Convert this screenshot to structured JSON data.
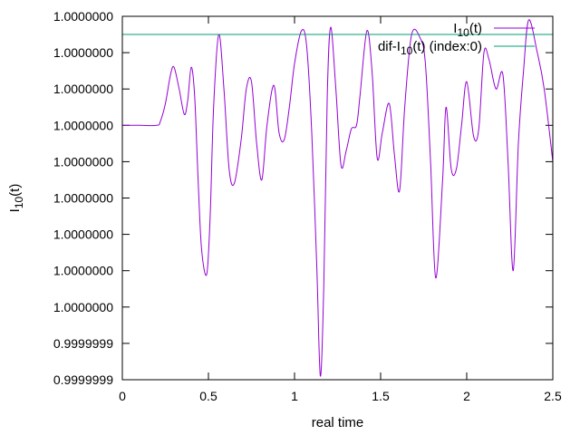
{
  "chart_data": {
    "type": "line",
    "xlabel": "real time",
    "ylabel": "I",
    "ylabel_sub": "10",
    "ylabel_suffix": "(t)",
    "xlim": [
      0,
      2.5
    ],
    "ylim": [
      0,
      10
    ],
    "x_ticks": [
      {
        "value": 0,
        "label": "0"
      },
      {
        "value": 0.5,
        "label": "0.5"
      },
      {
        "value": 1,
        "label": "1"
      },
      {
        "value": 1.5,
        "label": "1.5"
      },
      {
        "value": 2,
        "label": "2"
      },
      {
        "value": 2.5,
        "label": "2.5"
      }
    ],
    "y_ticks": [
      {
        "value": 0,
        "label": "0.9999999"
      },
      {
        "value": 1,
        "label": "0.9999999"
      },
      {
        "value": 2,
        "label": "1.0000000"
      },
      {
        "value": 3,
        "label": "1.0000000"
      },
      {
        "value": 4,
        "label": "1.0000000"
      },
      {
        "value": 5,
        "label": "1.0000000"
      },
      {
        "value": 6,
        "label": "1.0000000"
      },
      {
        "value": 7,
        "label": "1.0000000"
      },
      {
        "value": 8,
        "label": "1.0000000"
      },
      {
        "value": 9,
        "label": "1.0000000"
      },
      {
        "value": 10,
        "label": "1.0000000"
      }
    ],
    "legend_position": "top-right",
    "series": [
      {
        "legend_main": "I",
        "legend_sub": "10",
        "legend_suffix": "(t)",
        "color": "#9400d3",
        "x": [
          0,
          0.1,
          0.2,
          0.22,
          0.25,
          0.28,
          0.3,
          0.33,
          0.36,
          0.38,
          0.4,
          0.42,
          0.44,
          0.46,
          0.49,
          0.51,
          0.53,
          0.56,
          0.59,
          0.62,
          0.65,
          0.69,
          0.72,
          0.75,
          0.78,
          0.81,
          0.84,
          0.88,
          0.91,
          0.94,
          0.97,
          1.0,
          1.04,
          1.07,
          1.1,
          1.13,
          1.15,
          1.17,
          1.19,
          1.21,
          1.24,
          1.27,
          1.3,
          1.33,
          1.36,
          1.38,
          1.42,
          1.45,
          1.48,
          1.51,
          1.55,
          1.58,
          1.61,
          1.64,
          1.68,
          1.73,
          1.76,
          1.79,
          1.82,
          1.86,
          1.88,
          1.91,
          1.94,
          1.97,
          2.0,
          2.04,
          2.07,
          2.1,
          2.13,
          2.17,
          2.21,
          2.24,
          2.27,
          2.3,
          2.33,
          2.36,
          2.41,
          2.45,
          2.5
        ],
        "values": [
          7.0,
          7.0,
          7.0,
          7.1,
          7.6,
          8.4,
          8.6,
          8.0,
          7.3,
          7.7,
          8.6,
          7.8,
          5.5,
          3.6,
          2.9,
          4.5,
          7.5,
          9.5,
          8.0,
          5.8,
          5.4,
          6.6,
          8.0,
          8.2,
          6.5,
          5.5,
          7.0,
          8.1,
          6.8,
          6.6,
          7.5,
          8.7,
          9.6,
          9.2,
          6.8,
          3.0,
          0.1,
          2.6,
          7.8,
          9.7,
          8.0,
          5.9,
          6.3,
          6.9,
          7.0,
          7.8,
          9.6,
          8.5,
          6.1,
          6.8,
          7.6,
          6.2,
          5.2,
          7.5,
          9.5,
          9.4,
          8.7,
          6.0,
          2.8,
          5.5,
          7.5,
          5.8,
          5.8,
          7.0,
          8.2,
          6.7,
          6.9,
          9.0,
          8.8,
          8.0,
          8.4,
          6.0,
          3.0,
          6.5,
          8.5,
          9.9,
          9.0,
          8.0,
          6.0
        ]
      },
      {
        "legend_main": "dif-I",
        "legend_sub": "10",
        "legend_suffix": "(t) (index:0)",
        "color": "#009e73",
        "x": [
          0,
          2.5
        ],
        "values": [
          9.5,
          9.5
        ]
      }
    ]
  }
}
